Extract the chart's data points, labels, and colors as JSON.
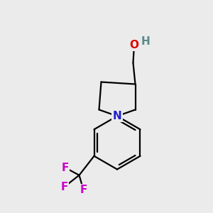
{
  "background_color": "#ebebeb",
  "bond_color": "#000000",
  "N_color": "#2020cc",
  "O_color": "#dd0000",
  "H_color": "#5a8a8a",
  "F_color": "#cc00cc",
  "figsize": [
    3.0,
    3.0
  ],
  "dpi": 100,
  "xlim": [
    0,
    10
  ],
  "ylim": [
    0,
    10
  ]
}
